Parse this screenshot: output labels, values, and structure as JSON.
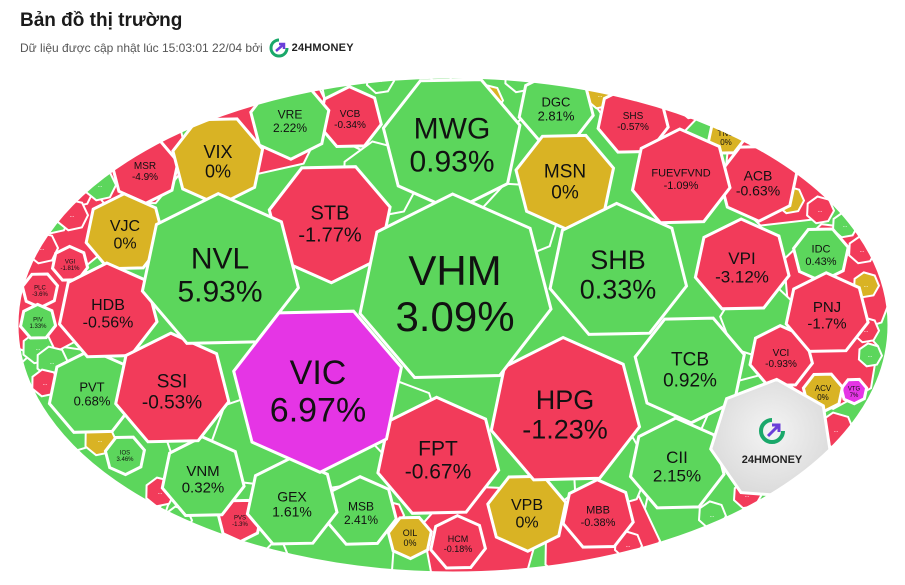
{
  "header": {
    "title": "Bản đồ thị trường",
    "updated_text": "Dữ liệu được cập nhật lúc 15:03:01 22/04 bởi",
    "brand_name": "24HMONEY"
  },
  "watermark": {
    "brand_name": "24HMONEY"
  },
  "colors": {
    "up": "#5cd65c",
    "down": "#f23b5a",
    "flat": "#d9b324",
    "ceiling": "#e535e5",
    "border": "#ffffff",
    "logo_green": "#1aa86a",
    "logo_purple": "#6a3fd9"
  },
  "tiles": [
    {
      "symbol": "VHM",
      "change": "3.09%",
      "status": "up"
    },
    {
      "symbol": "VIC",
      "change": "6.97%",
      "status": "ceiling"
    },
    {
      "symbol": "NVL",
      "change": "5.93%",
      "status": "up"
    },
    {
      "symbol": "MWG",
      "change": "0.93%",
      "status": "up"
    },
    {
      "symbol": "SHB",
      "change": "0.33%",
      "status": "up"
    },
    {
      "symbol": "HPG",
      "change": "-1.23%",
      "status": "down"
    },
    {
      "symbol": "STB",
      "change": "-1.77%",
      "status": "down"
    },
    {
      "symbol": "FPT",
      "change": "-0.67%",
      "status": "down"
    },
    {
      "symbol": "TCB",
      "change": "0.92%",
      "status": "up"
    },
    {
      "symbol": "SSI",
      "change": "-0.53%",
      "status": "down"
    },
    {
      "symbol": "HDB",
      "change": "-0.56%",
      "status": "down"
    },
    {
      "symbol": "VIX",
      "change": "0%",
      "status": "flat"
    },
    {
      "symbol": "VJC",
      "change": "0%",
      "status": "flat"
    },
    {
      "symbol": "MSN",
      "change": "0%",
      "status": "flat"
    },
    {
      "symbol": "VPI",
      "change": "-3.12%",
      "status": "down"
    },
    {
      "symbol": "DGC",
      "change": "2.81%",
      "status": "up"
    },
    {
      "symbol": "VRE",
      "change": "2.22%",
      "status": "up"
    },
    {
      "symbol": "VCB",
      "change": "-0.34%",
      "status": "down"
    },
    {
      "symbol": "MSR",
      "change": "-4.9%",
      "status": "down"
    },
    {
      "symbol": "SHS",
      "change": "-0.57%",
      "status": "down"
    },
    {
      "symbol": "FUEVFVND",
      "change": "-1.09%",
      "status": "down"
    },
    {
      "symbol": "ACB",
      "change": "-0.63%",
      "status": "down"
    },
    {
      "symbol": "TNG",
      "change": "0%",
      "status": "flat"
    },
    {
      "symbol": "IDC",
      "change": "0.43%",
      "status": "up"
    },
    {
      "symbol": "PNJ",
      "change": "-1.7%",
      "status": "down"
    },
    {
      "symbol": "VCI",
      "change": "-0.93%",
      "status": "down"
    },
    {
      "symbol": "ACV",
      "change": "0%",
      "status": "flat"
    },
    {
      "symbol": "VGI",
      "change": "-1.81%",
      "status": "down"
    },
    {
      "symbol": "PLC",
      "change": "-3.6%",
      "status": "down"
    },
    {
      "symbol": "PIV",
      "change": "1.33%",
      "status": "up"
    },
    {
      "symbol": "PVT",
      "change": "0.68%",
      "status": "up"
    },
    {
      "symbol": "IOS",
      "change": "3.46%",
      "status": "up"
    },
    {
      "symbol": "VNM",
      "change": "0.32%",
      "status": "up"
    },
    {
      "symbol": "PVS",
      "change": "-1.3%",
      "status": "down"
    },
    {
      "symbol": "GEX",
      "change": "1.61%",
      "status": "up"
    },
    {
      "symbol": "MSB",
      "change": "2.41%",
      "status": "up"
    },
    {
      "symbol": "OIL",
      "change": "0%",
      "status": "flat"
    },
    {
      "symbol": "HCM",
      "change": "-0.18%",
      "status": "down"
    },
    {
      "symbol": "VPB",
      "change": "0%",
      "status": "flat"
    },
    {
      "symbol": "MBB",
      "change": "-0.38%",
      "status": "down"
    },
    {
      "symbol": "CII",
      "change": "2.15%",
      "status": "up"
    },
    {
      "symbol": "VTG",
      "change": "7%",
      "status": "ceiling"
    }
  ],
  "filler_label": "...",
  "filler_tiles": [
    {
      "status": "down"
    },
    {
      "status": "up"
    },
    {
      "status": "down"
    },
    {
      "status": "up"
    },
    {
      "status": "down"
    },
    {
      "status": "up"
    },
    {
      "status": "up"
    },
    {
      "status": "down"
    },
    {
      "status": "flat"
    },
    {
      "status": "down"
    },
    {
      "status": "up"
    },
    {
      "status": "down"
    },
    {
      "status": "flat"
    },
    {
      "status": "up"
    },
    {
      "status": "down"
    },
    {
      "status": "flat"
    },
    {
      "status": "down"
    },
    {
      "status": "up"
    },
    {
      "status": "down"
    },
    {
      "status": "flat"
    },
    {
      "status": "down"
    },
    {
      "status": "up"
    },
    {
      "status": "down"
    },
    {
      "status": "flat"
    },
    {
      "status": "down"
    },
    {
      "status": "up"
    },
    {
      "status": "down"
    },
    {
      "status": "ceiling"
    },
    {
      "status": "down"
    },
    {
      "status": "up"
    },
    {
      "status": "down"
    },
    {
      "status": "up"
    }
  ]
}
